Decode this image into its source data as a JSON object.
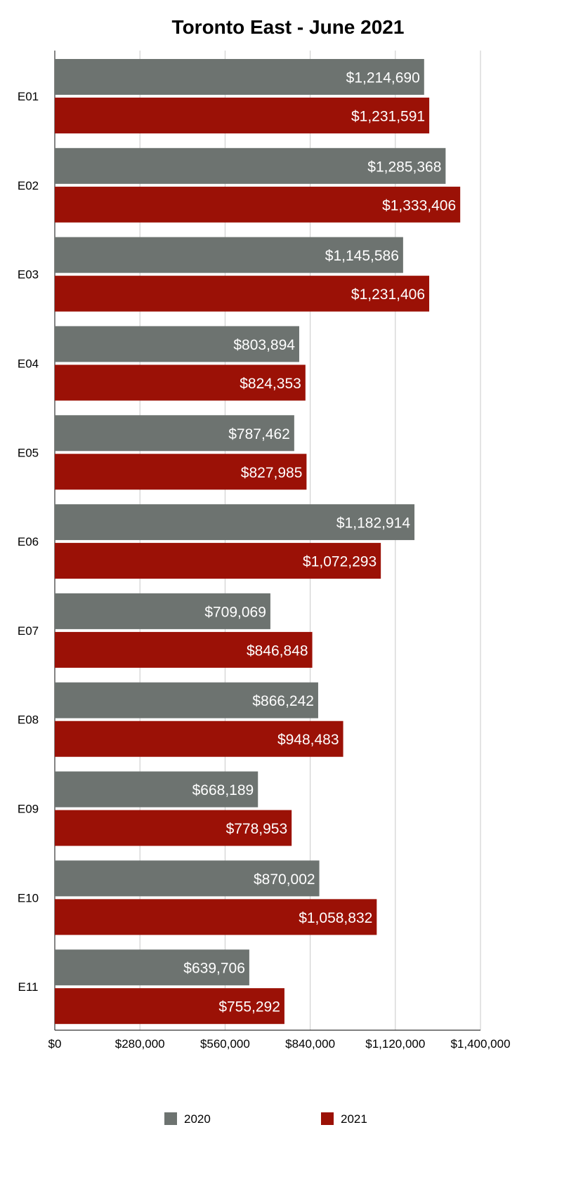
{
  "chart_data": {
    "type": "bar",
    "orientation": "horizontal",
    "title": "Toronto East - June 2021",
    "xlabel": "",
    "ylabel": "",
    "categories": [
      "E01",
      "E02",
      "E03",
      "E04",
      "E05",
      "E06",
      "E07",
      "E08",
      "E09",
      "E10",
      "E11"
    ],
    "series": [
      {
        "name": "2020",
        "color": "#6d7370",
        "values": [
          1214690,
          1285368,
          1145586,
          803894,
          787462,
          1182914,
          709069,
          866242,
          668189,
          870002,
          639706
        ],
        "labels": [
          "$1,214,690",
          "$1,285,368",
          "$1,145,586",
          "$803,894",
          "$787,462",
          "$1,182,914",
          "$709,069",
          "$866,242",
          "$668,189",
          "$870,002",
          "$639,706"
        ]
      },
      {
        "name": "2021",
        "color": "#9b1106",
        "values": [
          1231591,
          1333406,
          1231406,
          824353,
          827985,
          1072293,
          846848,
          948483,
          778953,
          1058832,
          755292
        ],
        "labels": [
          "$1,231,591",
          "$1,333,406",
          "$1,231,406",
          "$824,353",
          "$827,985",
          "$1,072,293",
          "$846,848",
          "$948,483",
          "$778,953",
          "$1,058,832",
          "$755,292"
        ]
      }
    ],
    "xlim": [
      0,
      1400000
    ],
    "ticks": [
      0,
      280000,
      560000,
      840000,
      1120000,
      1400000
    ],
    "tick_labels": [
      "$0",
      "$280,000",
      "$560,000",
      "$840,000",
      "$1,120,000",
      "$1,400,000"
    ],
    "grid": true,
    "legend_position": "bottom"
  }
}
